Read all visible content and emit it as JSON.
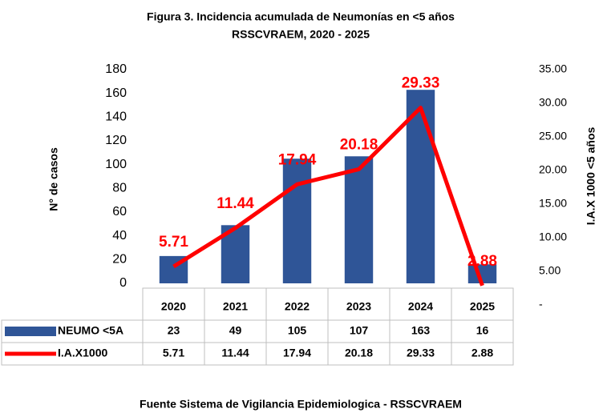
{
  "chart_data": {
    "type": "bar_line",
    "title": "Figura 3. Incidencia acumulada de Neumonías en <5 años",
    "subtitle": "RSSCVRAEM, 2020 - 2025",
    "y_label": "N° de casos",
    "y2_label": "I.A.X 1000 <5 años",
    "source": "Fuente Sistema de Vigilancia Epidemiologica - RSSCVRAEM",
    "categories": [
      "2020",
      "2021",
      "2022",
      "2023",
      "2024",
      "2025"
    ],
    "series": [
      {
        "name": "NEUMO <5A",
        "color": "#2f5597",
        "values": [
          23,
          49,
          105,
          107,
          163,
          16
        ]
      },
      {
        "name": "I.A.X1000",
        "color": "#ff0000",
        "axis": "y2",
        "values": [
          5.71,
          11.44,
          17.94,
          20.18,
          29.33,
          2.88
        ]
      }
    ],
    "ylim": [
      0,
      180
    ],
    "yticks": [
      0,
      20,
      40,
      60,
      80,
      100,
      120,
      140,
      160,
      180
    ],
    "y2lim": [
      0,
      35
    ],
    "y2ticks": [
      {
        "value": 0,
        "label": "-"
      },
      {
        "value": 5,
        "label": "5.00"
      },
      {
        "value": 10,
        "label": "10.00"
      },
      {
        "value": 15,
        "label": "15.00"
      },
      {
        "value": 20,
        "label": "20.00"
      },
      {
        "value": 25,
        "label": "25.00"
      },
      {
        "value": 30,
        "label": "30.00"
      },
      {
        "value": 35,
        "label": "35.00"
      }
    ]
  }
}
